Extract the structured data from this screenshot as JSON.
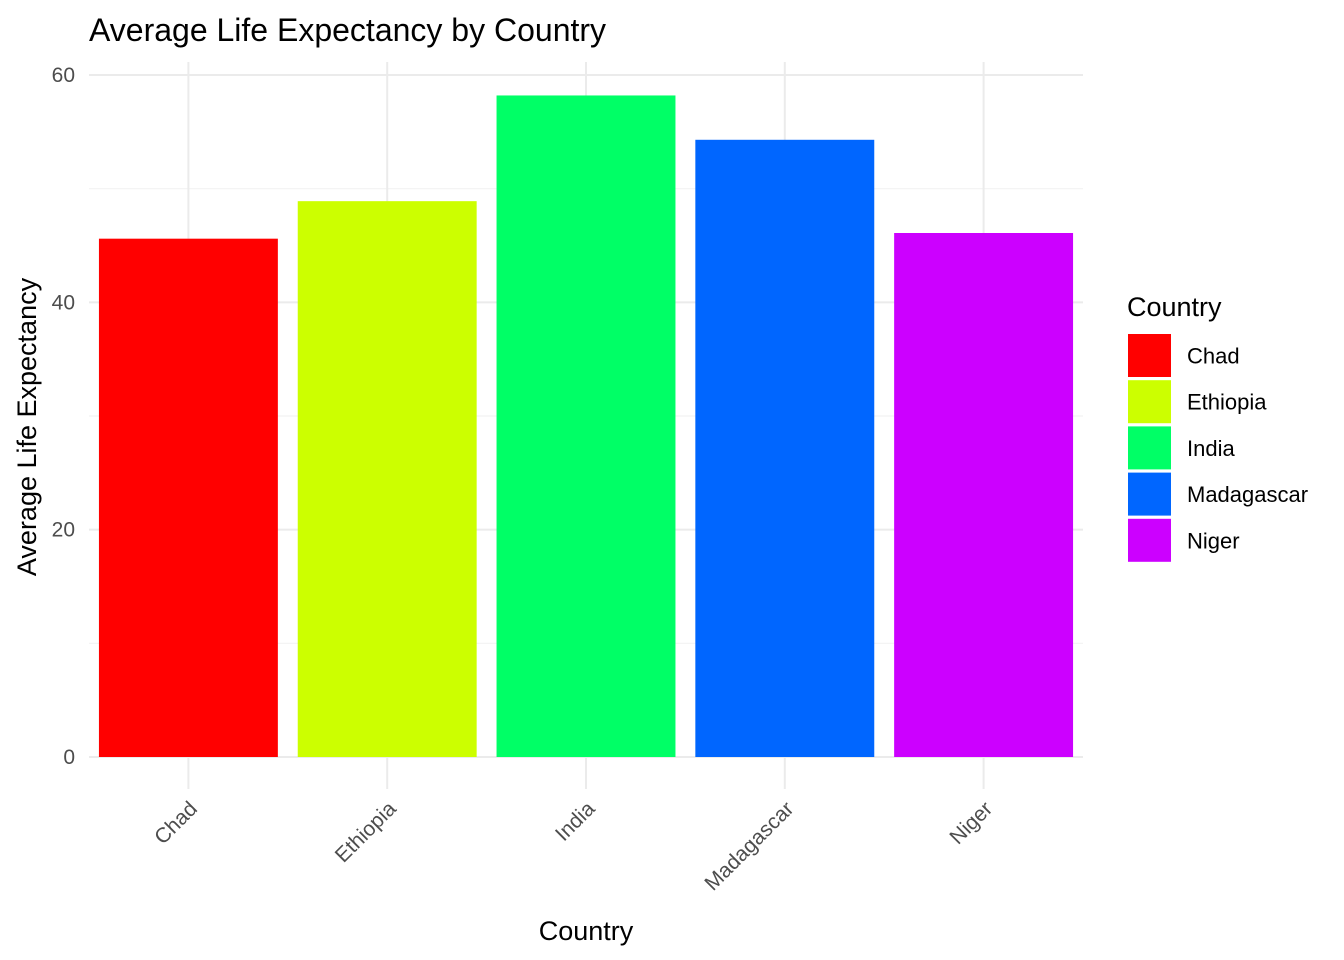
{
  "chart_data": {
    "type": "bar",
    "title": "Average Life Expectancy by Country",
    "xlabel": "Country",
    "ylabel": "Average Life Expectancy",
    "categories": [
      "Chad",
      "Ethiopia",
      "India",
      "Madagascar",
      "Niger"
    ],
    "values": [
      45.6,
      48.9,
      58.2,
      54.3,
      46.1
    ],
    "colors": [
      "#FF0000",
      "#CCFF00",
      "#00FF66",
      "#0066FF",
      "#CC00FF"
    ],
    "ylim": [
      0,
      60
    ],
    "yticks": [
      0,
      20,
      40,
      60
    ],
    "grid": true,
    "legend": {
      "title": "Country",
      "position": "right",
      "items": [
        "Chad",
        "Ethiopia",
        "India",
        "Madagascar",
        "Niger"
      ]
    }
  }
}
